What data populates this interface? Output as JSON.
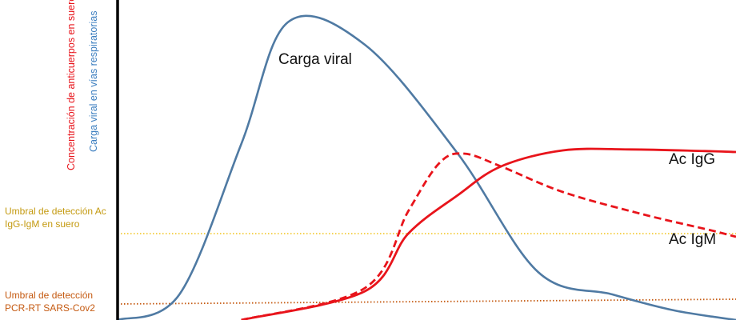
{
  "chart_data": {
    "type": "line",
    "title": "",
    "xlabel": "",
    "ylabels": {
      "antibody": "Concentración de anticuerpos en suero",
      "viral": "Carga viral en vías respiratorias"
    },
    "ylabel_colors": {
      "antibody": "#e8141b",
      "viral": "#3d7fc0"
    },
    "grid": false,
    "series": [
      {
        "name": "Carga viral",
        "color": "#4f7aa3",
        "style": "solid",
        "x": [
          0,
          10,
          20,
          27.5,
          40,
          55,
          68,
          80,
          90,
          100
        ],
        "y": [
          0,
          8,
          55,
          93,
          86,
          52,
          15,
          8,
          3,
          0
        ]
      },
      {
        "name": "Ac IgG",
        "color": "#e8141b",
        "style": "solid",
        "x": [
          20,
          40,
          47,
          55,
          62,
          72,
          83,
          95,
          100
        ],
        "y": [
          0,
          9,
          27,
          39,
          48,
          53,
          53.3,
          52.8,
          52.5
        ]
      },
      {
        "name": "Ac IgM",
        "color": "#e8141b",
        "style": "dashed",
        "x": [
          20,
          40,
          47,
          52,
          56,
          62,
          72,
          85,
          96,
          100
        ],
        "y": [
          0,
          10,
          34,
          49,
          52,
          48,
          40,
          33,
          28,
          26
        ]
      }
    ],
    "thresholds": [
      {
        "label": "Umbral de detección Ac IgG-IgM en suero",
        "label_lines": [
          "Umbral de detección Ac",
          "IgG-IgM en suero"
        ],
        "color": "#f2c418",
        "text_color": "#c49a10",
        "style": "dotted",
        "y": 27
      },
      {
        "label": "Umbral de detección PCR-RT SARS-Cov2",
        "label_lines": [
          "Umbral de detección",
          "PCR-RT SARS-Cov2"
        ],
        "color": "#c55a11",
        "text_color": "#c55a11",
        "style": "dotted",
        "y_start": 5,
        "y_end": 6.5
      }
    ],
    "axis_color": "#000000"
  }
}
